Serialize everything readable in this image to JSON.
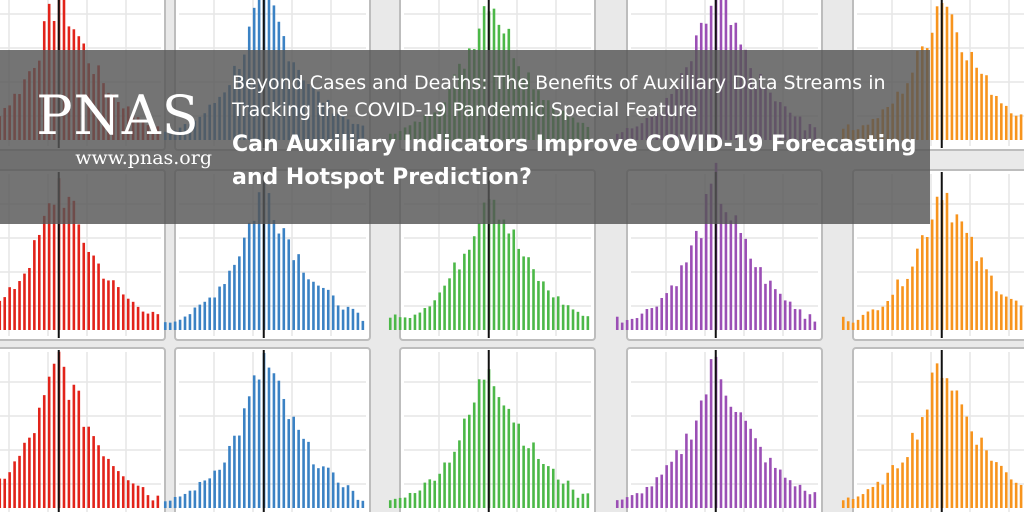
{
  "brand": {
    "logo": "PNAS",
    "url": "www.pnas.org"
  },
  "headline": {
    "series": "Beyond Cases and Deaths: The Benefits of Auxiliary Data Streams in Tracking the COVID-19 Pandemic Special Feature",
    "title": "Can Auxiliary Indicators Improve COVID-19 Forecasting and Hotspot Prediction?"
  },
  "background": {
    "description_colors": [
      "#e2231a",
      "#3b82c4",
      "#4cb848",
      "#9b4fb5",
      "#f7941d"
    ],
    "panel_color": "#555555"
  }
}
